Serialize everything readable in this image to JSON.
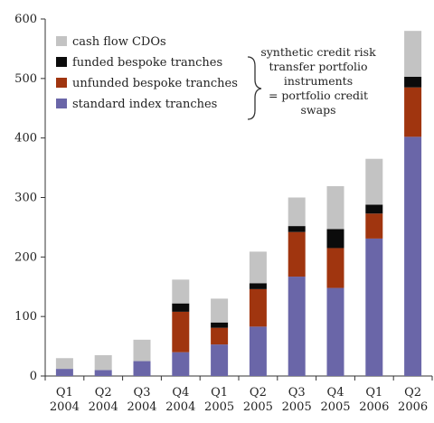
{
  "chart_data": {
    "type": "bar",
    "stacked": true,
    "categories": [
      [
        "Q1",
        "2004"
      ],
      [
        "Q2",
        "2004"
      ],
      [
        "Q3",
        "2004"
      ],
      [
        "Q4",
        "2004"
      ],
      [
        "Q1",
        "2005"
      ],
      [
        "Q2",
        "2005"
      ],
      [
        "Q3",
        "2005"
      ],
      [
        "Q4",
        "2005"
      ],
      [
        "Q1",
        "2006"
      ],
      [
        "Q2",
        "2006"
      ]
    ],
    "series": [
      {
        "name": "standard index tranches",
        "color": "#6a66a8",
        "values": [
          12,
          10,
          25,
          40,
          53,
          83,
          167,
          148,
          231,
          402
        ]
      },
      {
        "name": "unfunded bespoke tranches",
        "color": "#a0350f",
        "values": [
          0,
          0,
          0,
          68,
          28,
          63,
          75,
          67,
          42,
          83
        ]
      },
      {
        "name": "funded bespoke tranches",
        "color": "#0b0b0b",
        "values": [
          0,
          0,
          0,
          14,
          9,
          10,
          10,
          32,
          15,
          18
        ]
      },
      {
        "name": "cash flow CDOs",
        "color": "#c3c3c3",
        "values": [
          18,
          25,
          36,
          40,
          40,
          53,
          48,
          72,
          77,
          77
        ]
      }
    ],
    "ylim": [
      0,
      600
    ],
    "yticks": [
      0,
      100,
      200,
      300,
      400,
      500,
      600
    ],
    "legend_order": [
      "cash flow CDOs",
      "funded bespoke tranches",
      "unfunded bespoke tranches",
      "standard index tranches"
    ],
    "legend_position": "top-left",
    "annotation": [
      "synthetic credit risk",
      "transfer portfolio",
      "instruments",
      "= portfolio credit",
      "swaps"
    ],
    "grid": false
  }
}
